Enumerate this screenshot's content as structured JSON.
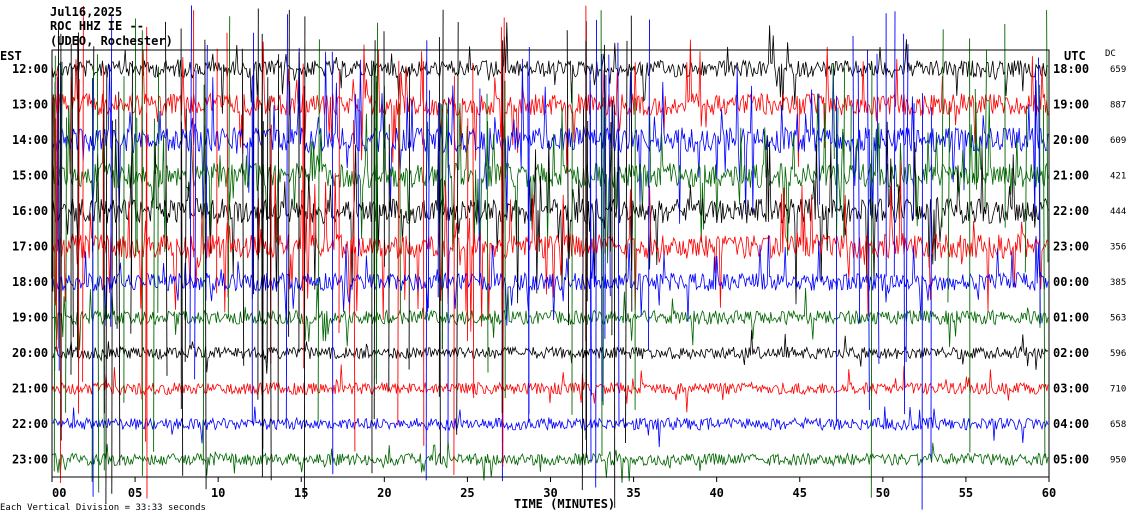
{
  "chart_data": {
    "type": "line",
    "header_lines": [
      "Jul16,2025",
      "ROC HHZ IE --",
      "(UDEO, Rochester)"
    ],
    "left_axis_title": "EST",
    "right_axis_title": "UTC",
    "dc_title": "DC",
    "xlabel": "TIME (MINUTES)",
    "xlim": [
      0,
      60
    ],
    "x_ticks": [
      "00",
      "05",
      "10",
      "15",
      "20",
      "25",
      "30",
      "35",
      "40",
      "45",
      "50",
      "55",
      "60"
    ],
    "footer": "Each Vertical Division = 33:33 seconds",
    "colors": {
      "black": "#000000",
      "red": "#ff0000",
      "blue": "#0000ff",
      "green": "#006600"
    },
    "rows": [
      {
        "est": "12:00",
        "utc": "18:00",
        "dc": "659",
        "color": "#000000",
        "level": 0.55
      },
      {
        "est": "13:00",
        "utc": "19:00",
        "dc": "887",
        "color": "#ff0000",
        "level": 0.8
      },
      {
        "est": "14:00",
        "utc": "20:00",
        "dc": "609",
        "color": "#0000ff",
        "level": 0.95
      },
      {
        "est": "15:00",
        "utc": "21:00",
        "dc": "421",
        "color": "#006600",
        "level": 0.95
      },
      {
        "est": "16:00",
        "utc": "22:00",
        "dc": "444",
        "color": "#000000",
        "level": 0.95
      },
      {
        "est": "17:00",
        "utc": "23:00",
        "dc": "356",
        "color": "#ff0000",
        "level": 0.9
      },
      {
        "est": "18:00",
        "utc": "00:00",
        "dc": "385",
        "color": "#0000ff",
        "level": 0.6
      },
      {
        "est": "19:00",
        "utc": "01:00",
        "dc": "563",
        "color": "#006600",
        "level": 0.4
      },
      {
        "est": "20:00",
        "utc": "02:00",
        "dc": "596",
        "color": "#000000",
        "level": 0.3
      },
      {
        "est": "21:00",
        "utc": "03:00",
        "dc": "710",
        "color": "#ff0000",
        "level": 0.3
      },
      {
        "est": "22:00",
        "utc": "04:00",
        "dc": "658",
        "color": "#0000ff",
        "level": 0.3
      },
      {
        "est": "23:00",
        "utc": "05:00",
        "dc": "950",
        "color": "#006600",
        "level": 0.3
      }
    ]
  }
}
